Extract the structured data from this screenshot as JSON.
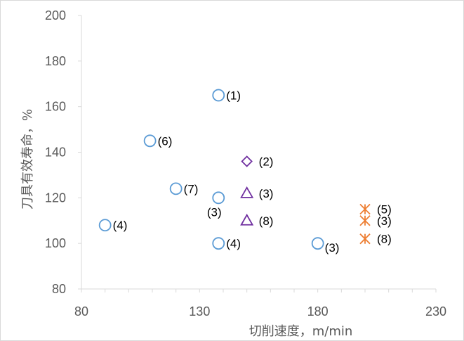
{
  "chart_data": {
    "type": "scatter",
    "xlabel": "切削速度，m/min",
    "ylabel": "刀具有效寿命，%",
    "xlim": [
      80,
      230
    ],
    "ylim": [
      80,
      200
    ],
    "x_ticks": [
      80,
      130,
      180,
      230
    ],
    "y_ticks": [
      80,
      100,
      120,
      140,
      160,
      180,
      200
    ],
    "grid": false,
    "series": [
      {
        "marker": "circle",
        "color": "#5b9bd5",
        "points": [
          {
            "x": 138,
            "y": 165,
            "label": "(1)"
          },
          {
            "x": 109,
            "y": 145,
            "label": "(6)"
          },
          {
            "x": 120,
            "y": 124,
            "label": "(7)"
          },
          {
            "x": 138,
            "y": 120,
            "label": "(3)"
          },
          {
            "x": 90,
            "y": 108,
            "label": "(4)"
          },
          {
            "x": 138,
            "y": 100,
            "label": "(4)"
          },
          {
            "x": 180,
            "y": 100,
            "label": "(3)"
          }
        ]
      },
      {
        "marker": "diamond",
        "color": "#7030a0",
        "points": [
          {
            "x": 150,
            "y": 136,
            "label": "(2)"
          }
        ]
      },
      {
        "marker": "triangle",
        "color": "#7030a0",
        "points": [
          {
            "x": 150,
            "y": 122,
            "label": "(3)"
          },
          {
            "x": 150,
            "y": 110,
            "label": "(8)"
          }
        ]
      },
      {
        "marker": "star",
        "color": "#ed7d31",
        "points": [
          {
            "x": 200,
            "y": 115,
            "label": "(5)"
          },
          {
            "x": 200,
            "y": 110,
            "label": "(3)"
          },
          {
            "x": 200,
            "y": 102,
            "label": "(8)"
          }
        ]
      }
    ]
  }
}
